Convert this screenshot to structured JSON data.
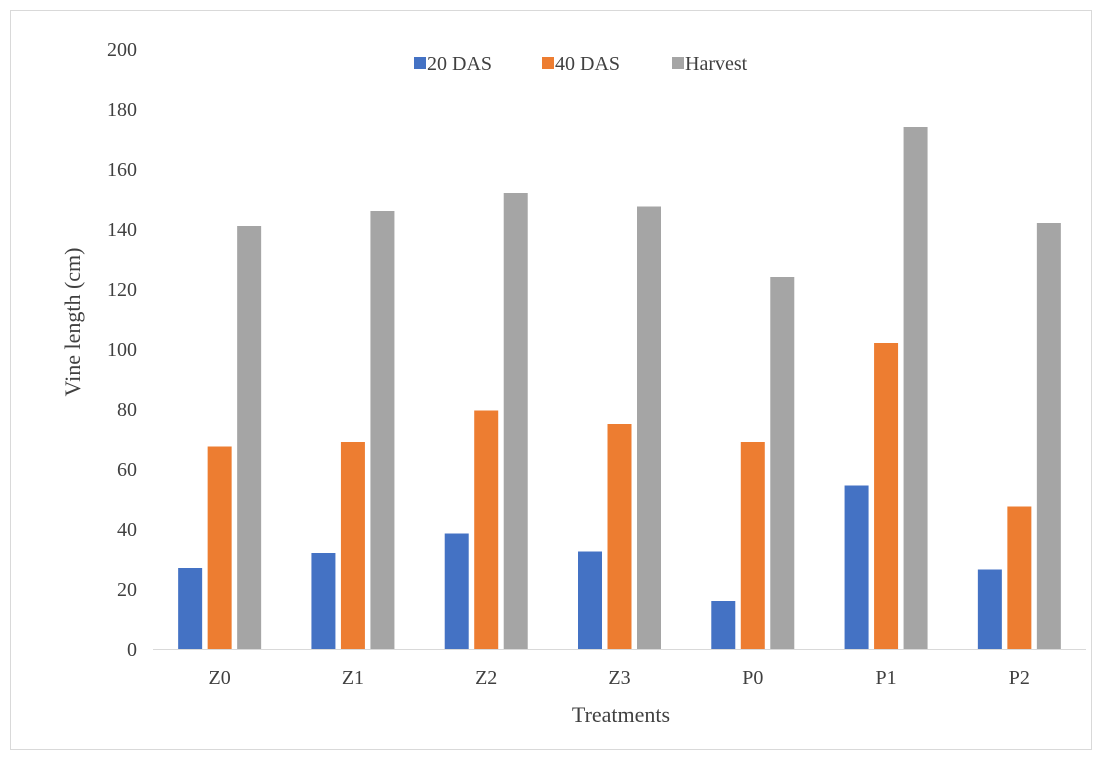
{
  "chart_data": {
    "type": "bar",
    "categories": [
      "Z0",
      "Z1",
      "Z2",
      "Z3",
      "P0",
      "P1",
      "P2"
    ],
    "series": [
      {
        "name": "20 DAS",
        "color": "#4472c4",
        "values": [
          27,
          32,
          38.5,
          32.5,
          16,
          54.5,
          26.5
        ]
      },
      {
        "name": "40 DAS",
        "color": "#ed7d31",
        "values": [
          67.5,
          69,
          79.5,
          75,
          69,
          102,
          47.5
        ]
      },
      {
        "name": "Harvest",
        "color": "#a5a5a5",
        "values": [
          141,
          146,
          152,
          147.5,
          124,
          174,
          142
        ]
      }
    ],
    "xlabel": "Treatments",
    "ylabel": "Vine length (cm)",
    "ylim": [
      0,
      200
    ],
    "ytick_step": 20,
    "legend": "top-center",
    "grid": false
  }
}
